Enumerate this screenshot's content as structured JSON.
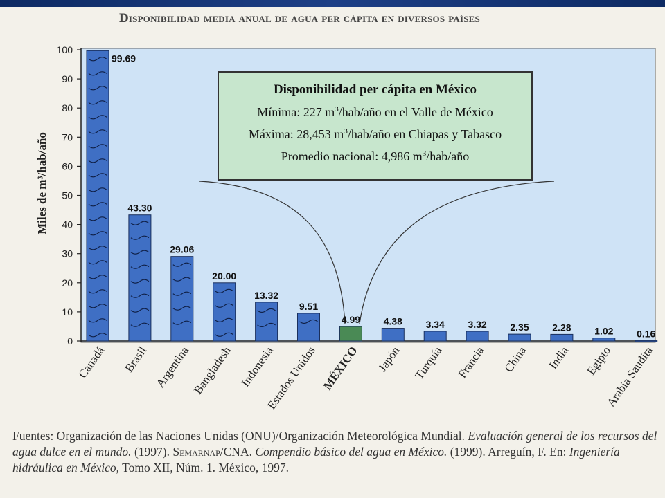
{
  "title": "Disponibilidad media anual de agua per cápita en diversos países",
  "chart_data": {
    "type": "bar",
    "title": "Disponibilidad media anual de agua per cápita en diversos países",
    "ylabel": "Miles de m³/hab/año",
    "xlabel": "",
    "ylim": [
      0,
      100
    ],
    "yticks": [
      0,
      10,
      20,
      30,
      40,
      50,
      60,
      70,
      80,
      90,
      100
    ],
    "categories": [
      "Canadá",
      "Brasil",
      "Argentina",
      "Bangladesh",
      "Indonesia",
      "Estados Unidos",
      "MÉXICO",
      "Japón",
      "Turquía",
      "Francia",
      "China",
      "India",
      "Egipto",
      "Arabia Saudita"
    ],
    "values": [
      99.69,
      43.3,
      29.06,
      20.0,
      13.32,
      9.51,
      4.99,
      4.38,
      3.34,
      3.32,
      2.35,
      2.28,
      1.02,
      0.16
    ],
    "value_labels": [
      "99.69",
      "43.30",
      "29.06",
      "20.00",
      "13.32",
      "9.51",
      "4.99",
      "4.38",
      "3.34",
      "3.32",
      "2.35",
      "2.28",
      "1.02",
      "0.16"
    ],
    "highlight_category": "MÉXICO",
    "grid": false,
    "colors": {
      "bar": "#3f6fc4",
      "bar_highlight": "#4a8a55",
      "plot_bg": "#cfe3f6"
    }
  },
  "callout": {
    "title": "Disponibilidad per cápita en México",
    "min_label": "Mínima: 227 m",
    "min_rest": "/hab/año en el Valle de México",
    "max_label": "Máxima: 28,453 m",
    "max_rest": "/hab/año en Chiapas y Tabasco",
    "avg_label": "Promedio nacional: 4,986 m",
    "avg_rest": "/hab/año",
    "superscript": "3"
  },
  "source": {
    "prefix": "Fuentes: Organización de las Naciones Unidas (ONU)/Organización Meteorológica Mundial.",
    "work1": "Evaluación general de los recursos del agua dulce en el mundo.",
    "year1": "(1997).",
    "org2": "Semarnap",
    "org2b": "/CNA.",
    "work2": "Compendio básico del agua en México.",
    "year2": "(1999). Arreguín, F. En:",
    "work3": "Ingeniería hidráulica en México,",
    "tail": "Tomo XII, Núm. 1. México, 1997."
  }
}
